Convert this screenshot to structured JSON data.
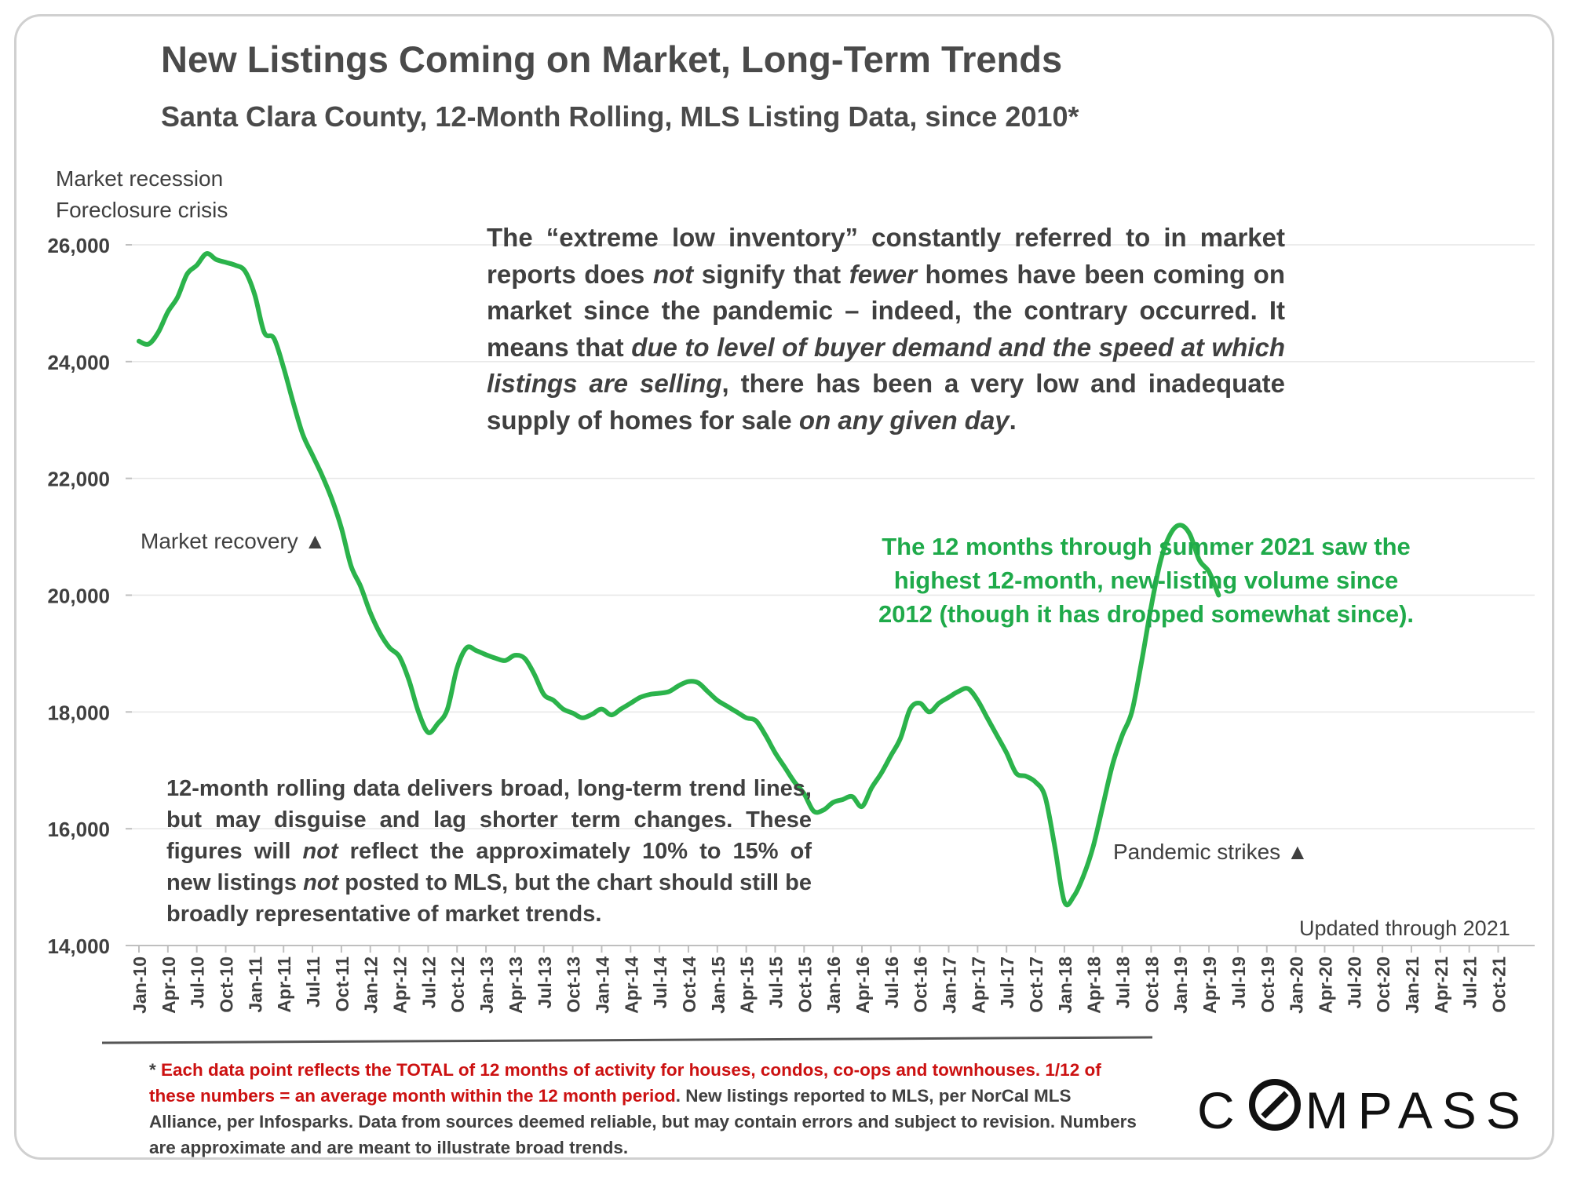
{
  "chart_data": {
    "type": "line",
    "title": "New Listings Coming on Market, Long-Term Trends",
    "subtitle": "Santa Clara County, 12-Month Rolling, MLS Listing Data, since 2010*",
    "ylim": [
      14000,
      26000
    ],
    "yticks": [
      "14,000",
      "16,000",
      "18,000",
      "20,000",
      "22,000",
      "24,000",
      "26,000"
    ],
    "ytick_values": [
      14000,
      16000,
      18000,
      20000,
      22000,
      24000,
      26000
    ],
    "xlabels": [
      "Jan-10",
      "Apr-10",
      "Jul-10",
      "Oct-10",
      "Jan-11",
      "Apr-11",
      "Jul-11",
      "Oct-11",
      "Jan-12",
      "Apr-12",
      "Jul-12",
      "Oct-12",
      "Jan-13",
      "Apr-13",
      "Jul-13",
      "Oct-13",
      "Jan-14",
      "Apr-14",
      "Jul-14",
      "Oct-14",
      "Jan-15",
      "Apr-15",
      "Jul-15",
      "Oct-15",
      "Jan-16",
      "Apr-16",
      "Jul-16",
      "Oct-16",
      "Jan-17",
      "Apr-17",
      "Jul-17",
      "Oct-17",
      "Jan-18",
      "Apr-18",
      "Jul-18",
      "Oct-18",
      "Jan-19",
      "Apr-19",
      "Jul-19",
      "Oct-19",
      "Jan-20",
      "Apr-20",
      "Jul-20",
      "Oct-20",
      "Jan-21",
      "Apr-21",
      "Jul-21",
      "Oct-21"
    ],
    "grid": true,
    "series": [
      {
        "color": "#2bb34b",
        "values": [
          24350,
          24300,
          24500,
          24850,
          25100,
          25500,
          25650,
          25850,
          25750,
          25700,
          25650,
          25550,
          25150,
          24500,
          24400,
          23900,
          23300,
          22750,
          22400,
          22050,
          21650,
          21150,
          20500,
          20150,
          19700,
          19350,
          19100,
          18950,
          18550,
          18000,
          17650,
          17800,
          18050,
          18750,
          19100,
          19050,
          18980,
          18920,
          18880,
          18970,
          18920,
          18650,
          18300,
          18200,
          18050,
          17980,
          17900,
          17960,
          18050,
          17950,
          18050,
          18150,
          18250,
          18300,
          18320,
          18350,
          18450,
          18520,
          18500,
          18350,
          18200,
          18100,
          18000,
          17900,
          17850,
          17600,
          17300,
          17050,
          16800,
          16600,
          16300,
          16320,
          16450,
          16500,
          16550,
          16380,
          16700,
          16950,
          17250,
          17550,
          18050,
          18150,
          18000,
          18150,
          18250,
          18350,
          18400,
          18200,
          17900,
          17600,
          17300,
          16950,
          16900,
          16800,
          16550,
          15700,
          14750,
          14850,
          15200,
          15700,
          16400,
          17100,
          17600,
          18000,
          18850,
          19800,
          20600,
          21050,
          21200,
          21050,
          20600,
          20400,
          20000
        ]
      }
    ],
    "annotations": [
      "Market recession",
      "Foreclosure crisis",
      "Market recovery ▲",
      "Pandemic strikes ▲",
      "Updated through 2021"
    ]
  },
  "text": {
    "main_p1": "The “extreme low inventory” constantly referred to in market reports does ",
    "main_em1": "not",
    "main_p2": " signify that ",
    "main_em2": "fewer",
    "main_p3": " homes have been coming on market since the pandemic – indeed, the contrary occurred. It means that ",
    "main_em3": "due to level of buyer demand and the speed at which listings are selling",
    "main_p4": ", there has been a very low and inadequate supply of homes for sale ",
    "main_em4": "on any given day",
    "main_p5": ".",
    "rolling_p1": "12-month rolling data delivers broad, long-term trend lines, but may disguise and lag shorter term changes. These figures will ",
    "rolling_em1": "not",
    "rolling_p2": " reflect the approximately 10% to 15% of new listings ",
    "rolling_em2": "not",
    "rolling_p3": " posted to MLS, but the chart should still be broadly representative of market trends.",
    "green_line1": "The 12 months through summer 2021 saw the",
    "green_line2": "highest 12-month, new-listing volume since",
    "green_line3": "2012 (though it has dropped somewhat since).",
    "footnote_prefix": "* ",
    "footnote_red": "Each data point reflects the TOTAL of 12 months of activity for houses, condos, co-ops and townhouses. 1/12 of these numbers = an average month within the 12 month period",
    "footnote_rest": ". New listings reported to MLS, per NorCal MLS Alliance, per Infosparks. Data from sources deemed reliable, but may contain errors and subject to revision. Numbers are approximate and are meant to illustrate broad trends.",
    "brand_c": "C",
    "brand_rest": "MPASS"
  }
}
